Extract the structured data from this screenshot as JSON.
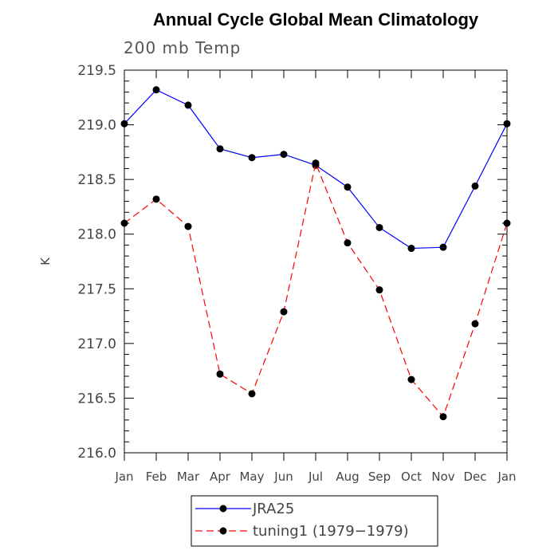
{
  "chart_data": {
    "type": "line",
    "title": "Annual Cycle Global Mean Climatology",
    "subtitle": "200 mb Temp",
    "xlabel": "",
    "ylabel": "K",
    "categories": [
      "Jan",
      "Feb",
      "Mar",
      "Apr",
      "May",
      "Jun",
      "Jul",
      "Aug",
      "Sep",
      "Oct",
      "Nov",
      "Dec",
      "Jan"
    ],
    "ylim": [
      216.0,
      219.5
    ],
    "yticks": [
      "216.0",
      "216.5",
      "217.0",
      "217.5",
      "218.0",
      "218.5",
      "219.0",
      "219.5"
    ],
    "grid": false,
    "legend_position": "bottom",
    "series": [
      {
        "name": "JRA25",
        "color": "#0000ff",
        "style": "solid",
        "values": [
          219.01,
          219.32,
          219.18,
          218.78,
          218.7,
          218.73,
          218.63,
          218.43,
          218.06,
          217.87,
          217.88,
          218.44,
          219.01
        ]
      },
      {
        "name": "tuning1 (1979−1979)",
        "color": "#ff0000",
        "style": "dashed",
        "values": [
          218.1,
          218.32,
          218.07,
          216.72,
          216.54,
          217.29,
          218.65,
          217.92,
          217.49,
          216.67,
          216.33,
          217.18,
          218.1
        ]
      }
    ]
  }
}
